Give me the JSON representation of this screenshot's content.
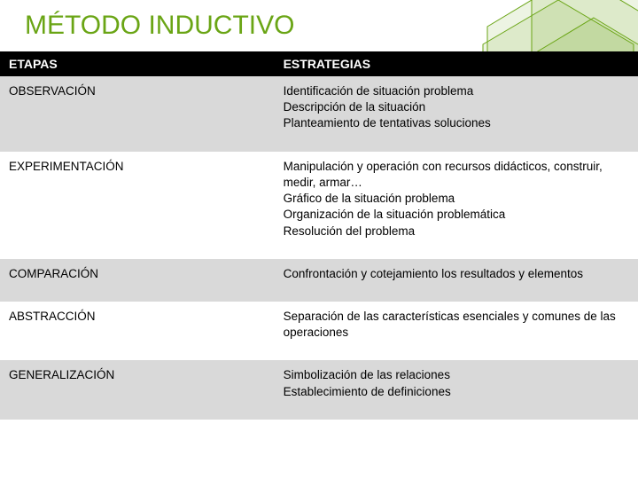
{
  "title": "MÉTODO INDUCTIVO",
  "colors": {
    "title_color": "#6aa515",
    "header_bg": "#000000",
    "header_text": "#ffffff",
    "row_shaded_bg": "#d9d9d9",
    "row_plain_bg": "#ffffff",
    "decor_stroke": "#6aa515",
    "decor_fill": "rgba(106,165,21,0.15)"
  },
  "table": {
    "columns": [
      "ETAPAS",
      "ESTRATEGIAS"
    ],
    "col_widths_pct": [
      43,
      57
    ],
    "header_fontsize": 14,
    "cell_fontsize": 13.5,
    "rows": [
      {
        "shaded": true,
        "etapa": "OBSERVACIÓN",
        "estrategia": "Identificación de situación problema\nDescripción de la situación\nPlanteamiento de tentativas soluciones"
      },
      {
        "shaded": false,
        "etapa": "EXPERIMENTACIÓN",
        "estrategia": "Manipulación  y operación con recursos didácticos, construir, medir, armar…\nGráfico  de la situación problema\nOrganización de la situación problemática\nResolución del problema"
      },
      {
        "shaded": true,
        "etapa": "COMPARACIÓN",
        "estrategia": "Confrontación y cotejamiento los resultados y elementos"
      },
      {
        "shaded": false,
        "etapa": "ABSTRACCIÓN",
        "estrategia": "Separación de las características esenciales y comunes de las operaciones"
      },
      {
        "shaded": true,
        "etapa": "GENERALIZACIÓN",
        "estrategia": "Simbolización de  las relaciones\nEstablecimiento de  definiciones"
      }
    ]
  }
}
